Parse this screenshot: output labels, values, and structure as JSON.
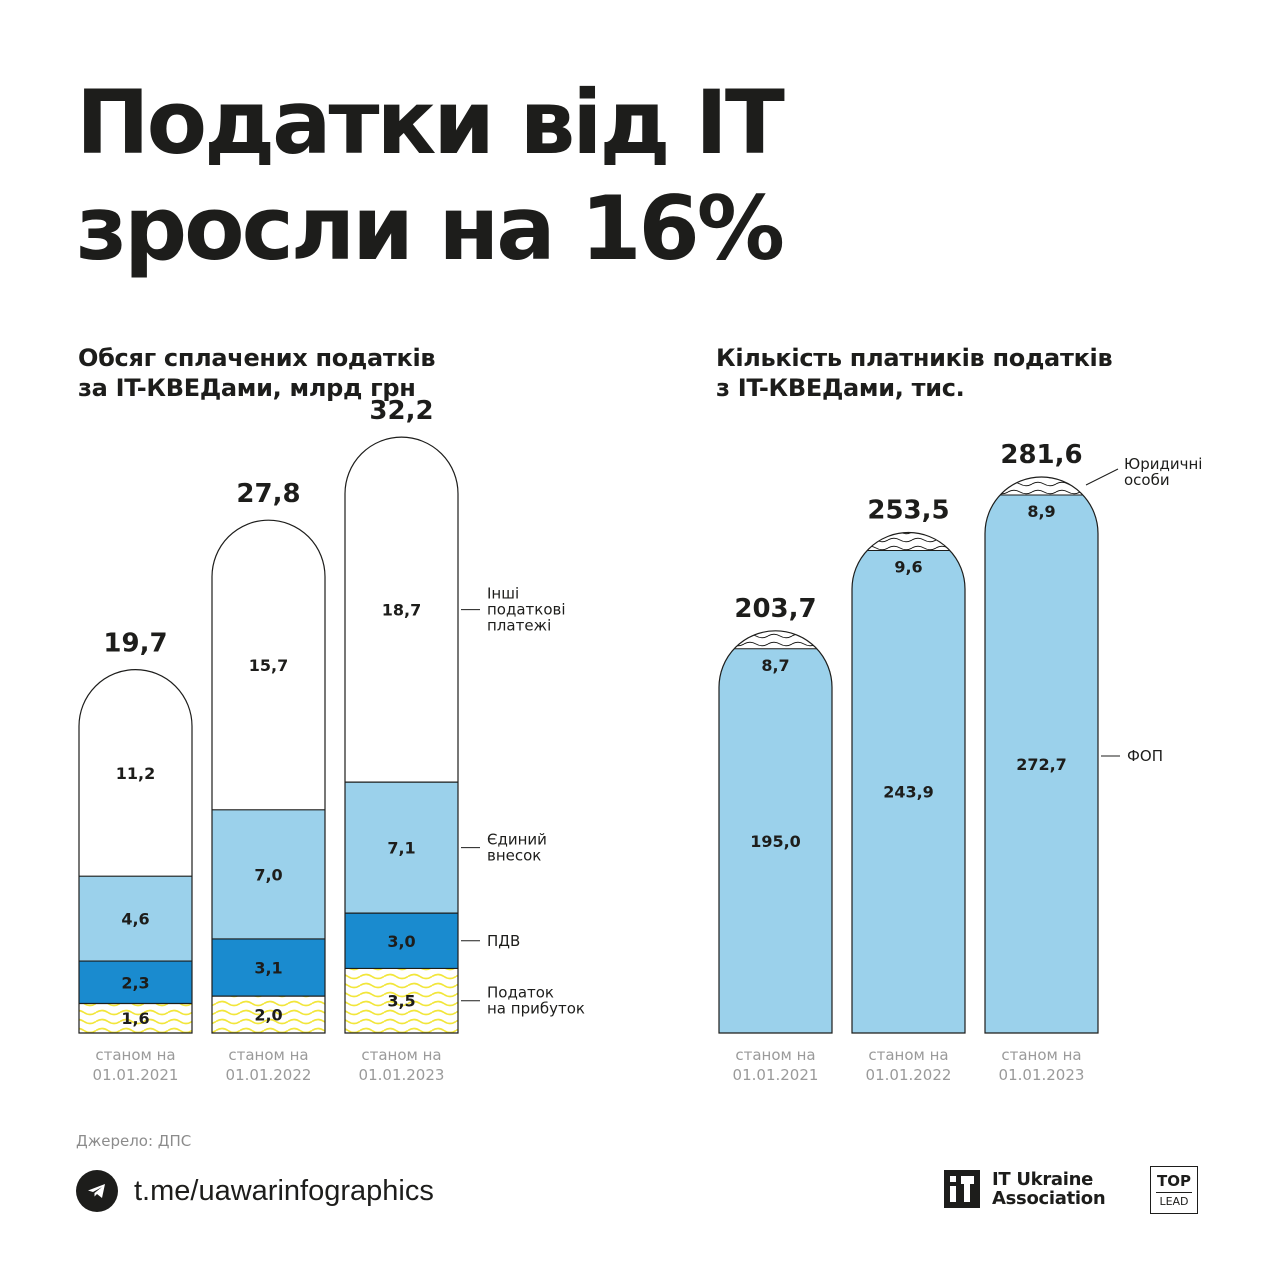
{
  "title": {
    "line1": "Податки від IT",
    "line2": "зросли на 16%"
  },
  "colors": {
    "light_blue": "#9bd1eb",
    "mid_blue": "#1a8bcf",
    "yellow": "#f7ee4a",
    "text": "#1d1d1b",
    "muted": "#9a9a9a"
  },
  "chart_data": [
    {
      "type": "bar",
      "stacked": true,
      "title_line1": "Обсяг сплачених податків",
      "title_line2": "за IT-КВЕДами, млрд грн",
      "categories": [
        {
          "line1": "станом на",
          "line2": "01.01.2021"
        },
        {
          "line1": "станом на",
          "line2": "01.01.2022"
        },
        {
          "line1": "станом на",
          "line2": "01.01.2023"
        }
      ],
      "totals": [
        "19,7",
        "27,8",
        "32,2"
      ],
      "total_values": [
        19.7,
        27.8,
        32.2
      ],
      "series": [
        {
          "name": "Податок на прибуток",
          "legend": [
            "Податок",
            "на прибуток"
          ],
          "fill": "yellow-waves",
          "values": [
            1.6,
            2.0,
            3.5
          ],
          "labels": [
            "1,6",
            "2,0",
            "3,5"
          ]
        },
        {
          "name": "ПДВ",
          "legend": [
            "ПДВ"
          ],
          "fill": "mid_blue",
          "values": [
            2.3,
            3.1,
            3.0
          ],
          "labels": [
            "2,3",
            "3,1",
            "3,0"
          ]
        },
        {
          "name": "Єдиний внесок",
          "legend": [
            "Єдиний",
            "внесок"
          ],
          "fill": "light_blue",
          "values": [
            4.6,
            7.0,
            7.1
          ],
          "labels": [
            "4,6",
            "7,0",
            "7,1"
          ]
        },
        {
          "name": "Інші податкові платежі",
          "legend": [
            "Інші",
            "податкові",
            "платежі"
          ],
          "fill": "white",
          "values": [
            11.2,
            15.7,
            18.7
          ],
          "labels": [
            "11,2",
            "15,7",
            "18,7"
          ]
        }
      ]
    },
    {
      "type": "bar",
      "stacked": true,
      "title_line1": "Кількість платників податків",
      "title_line2": "з IT-КВЕДами, тис.",
      "categories": [
        {
          "line1": "станом на",
          "line2": "01.01.2021"
        },
        {
          "line1": "станом на",
          "line2": "01.01.2022"
        },
        {
          "line1": "станом на",
          "line2": "01.01.2023"
        }
      ],
      "totals": [
        "203,7",
        "253,5",
        "281,6"
      ],
      "total_values": [
        203.7,
        253.5,
        281.6
      ],
      "series": [
        {
          "name": "ФОП",
          "legend": [
            "ФОП"
          ],
          "fill": "light_blue",
          "values": [
            195.0,
            243.9,
            272.7
          ],
          "labels": [
            "195,0",
            "243,9",
            "272,7"
          ]
        },
        {
          "name": "Юридичні особи",
          "legend": [
            "Юридичні",
            "особи"
          ],
          "fill": "white-waves",
          "values": [
            8.7,
            9.6,
            8.9
          ],
          "labels": [
            "8,7",
            "9,6",
            "8,9"
          ]
        }
      ]
    }
  ],
  "footer": {
    "source": "Джерело: ДПС",
    "telegram_icon": "telegram-icon",
    "telegram": "t.me/uawarinfographics",
    "itua_line1": "IT Ukraine",
    "itua_line2": "Association",
    "toplead_top": "TOP",
    "toplead_bottom": "LEAD"
  }
}
